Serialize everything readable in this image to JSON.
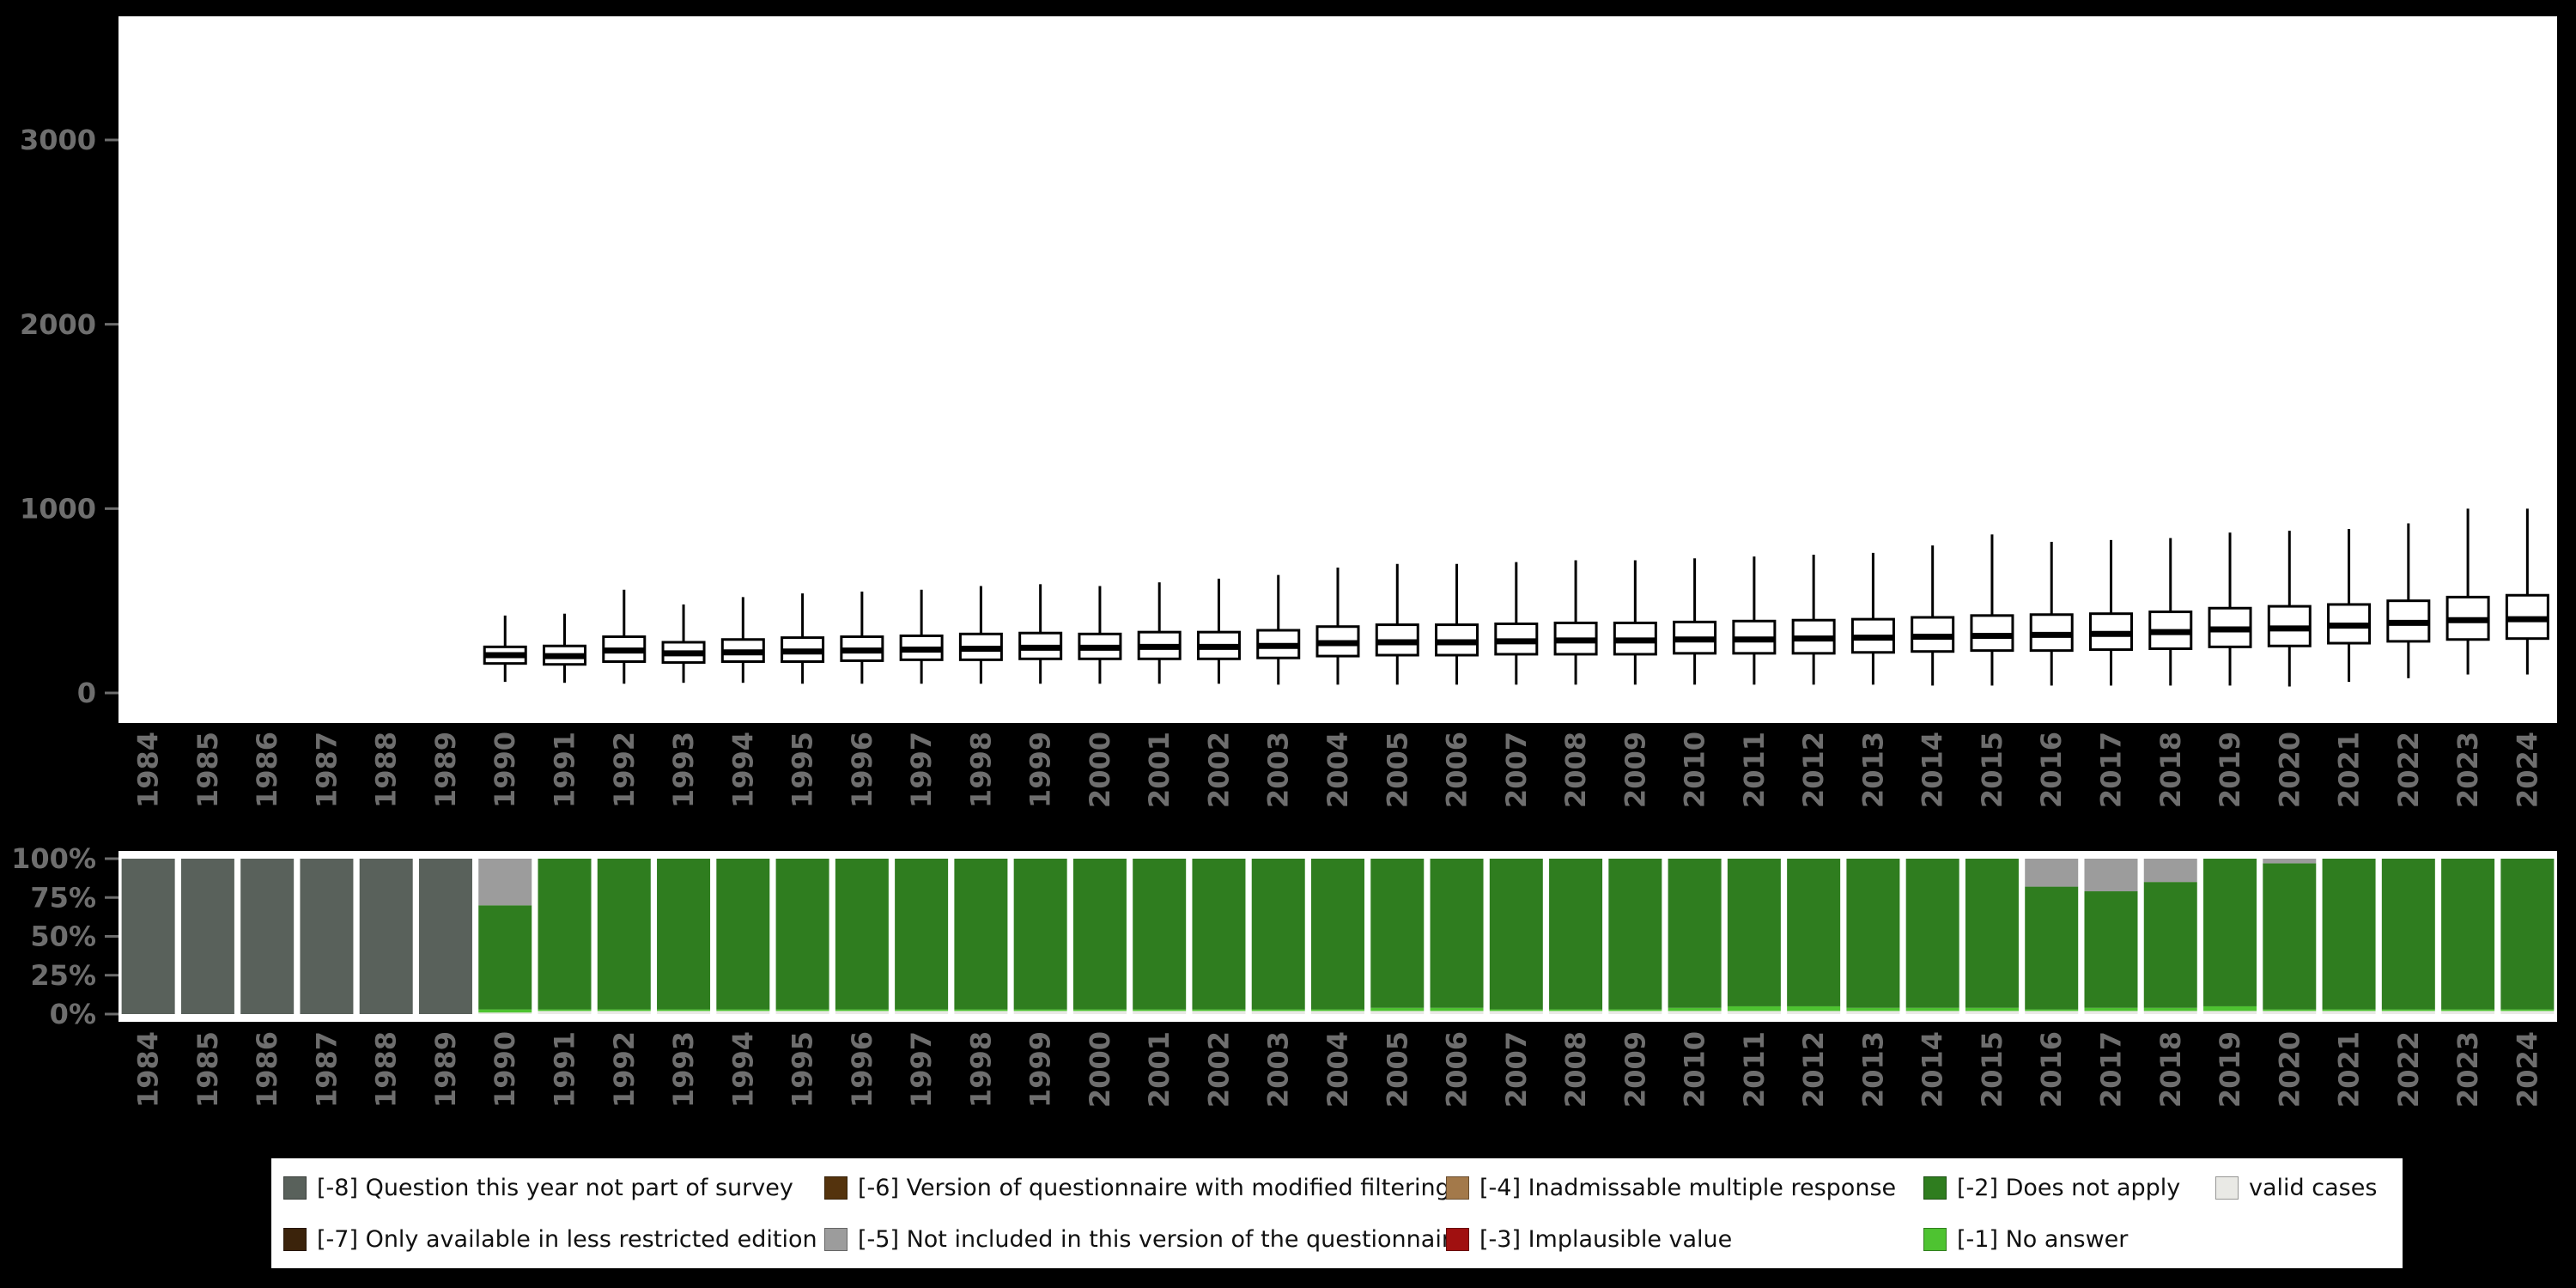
{
  "figure": {
    "background": "#000000",
    "panel_background": "#ffffff",
    "axis_text_color": "#6e6e6e",
    "box_stroke_color": "#000000"
  },
  "chart_data": [
    {
      "type": "boxplot",
      "title": "",
      "xlabel": "",
      "ylabel": "",
      "ylim": [
        0,
        3600
      ],
      "yticks": [
        0,
        1000,
        2000,
        3000
      ],
      "years": [
        1984,
        1985,
        1986,
        1987,
        1988,
        1989,
        1990,
        1991,
        1992,
        1993,
        1994,
        1995,
        1996,
        1997,
        1998,
        1999,
        2000,
        2001,
        2002,
        2003,
        2004,
        2005,
        2006,
        2007,
        2008,
        2009,
        2010,
        2011,
        2012,
        2013,
        2014,
        2015,
        2016,
        2017,
        2018,
        2019,
        2020,
        2021,
        2022,
        2023,
        2024
      ],
      "columns": [
        "year",
        "whisker_low",
        "q1",
        "median",
        "q3",
        "whisker_high"
      ],
      "boxes": [
        [
          1990,
          60,
          160,
          205,
          250,
          420
        ],
        [
          1991,
          55,
          155,
          200,
          255,
          430
        ],
        [
          1992,
          50,
          170,
          230,
          305,
          560
        ],
        [
          1993,
          55,
          165,
          215,
          275,
          480
        ],
        [
          1994,
          55,
          170,
          220,
          290,
          520
        ],
        [
          1995,
          50,
          170,
          225,
          300,
          540
        ],
        [
          1996,
          50,
          175,
          230,
          305,
          550
        ],
        [
          1997,
          50,
          180,
          235,
          310,
          560
        ],
        [
          1998,
          50,
          180,
          240,
          320,
          580
        ],
        [
          1999,
          50,
          185,
          245,
          325,
          590
        ],
        [
          2000,
          50,
          185,
          245,
          320,
          580
        ],
        [
          2001,
          50,
          185,
          250,
          330,
          600
        ],
        [
          2002,
          50,
          185,
          250,
          330,
          620
        ],
        [
          2003,
          45,
          190,
          255,
          340,
          640
        ],
        [
          2004,
          45,
          200,
          270,
          360,
          680
        ],
        [
          2005,
          45,
          205,
          275,
          370,
          700
        ],
        [
          2006,
          45,
          205,
          275,
          370,
          700
        ],
        [
          2007,
          45,
          210,
          280,
          375,
          710
        ],
        [
          2008,
          45,
          210,
          285,
          380,
          720
        ],
        [
          2009,
          45,
          210,
          285,
          380,
          720
        ],
        [
          2010,
          45,
          215,
          290,
          385,
          730
        ],
        [
          2011,
          45,
          215,
          290,
          390,
          740
        ],
        [
          2012,
          45,
          215,
          295,
          395,
          750
        ],
        [
          2013,
          45,
          220,
          300,
          400,
          760
        ],
        [
          2014,
          40,
          225,
          305,
          410,
          800
        ],
        [
          2015,
          40,
          230,
          310,
          420,
          860
        ],
        [
          2016,
          40,
          230,
          315,
          425,
          820
        ],
        [
          2017,
          40,
          235,
          320,
          430,
          830
        ],
        [
          2018,
          40,
          240,
          330,
          440,
          840
        ],
        [
          2019,
          40,
          250,
          345,
          460,
          870
        ],
        [
          2020,
          35,
          255,
          350,
          470,
          880
        ],
        [
          2021,
          60,
          270,
          365,
          480,
          890
        ],
        [
          2022,
          80,
          280,
          380,
          500,
          920
        ],
        [
          2023,
          100,
          290,
          395,
          520,
          1000
        ],
        [
          2024,
          100,
          295,
          400,
          530,
          1000
        ]
      ]
    },
    {
      "type": "bar",
      "stacked": true,
      "unit": "percent",
      "title": "",
      "xlabel": "",
      "ylabel": "",
      "yticks": [
        {
          "value": 100,
          "label": "100%"
        },
        {
          "value": 75,
          "label": "75%"
        },
        {
          "value": 50,
          "label": "50%"
        },
        {
          "value": 25,
          "label": "25%"
        },
        {
          "value": 0,
          "label": "0%"
        }
      ],
      "stack_order_bottom_to_top": [
        "valid",
        "m1",
        "m2",
        "m5",
        "m8"
      ],
      "colors": {
        "valid": "#e9e9e5",
        "m1": "#4ec331",
        "m2": "#2f7d1f",
        "m3": "#a01010",
        "m4": "#a3794a",
        "m5": "#9c9c9c",
        "m6": "#54330d",
        "m7": "#3b230b",
        "m8": "#59615b"
      },
      "columns": [
        "year",
        "valid",
        "m1",
        "m2",
        "m5",
        "m8"
      ],
      "rows": [
        [
          1984,
          0,
          0,
          0,
          0,
          100
        ],
        [
          1985,
          0,
          0,
          0,
          0,
          100
        ],
        [
          1986,
          0,
          0,
          0,
          0,
          100
        ],
        [
          1987,
          0,
          0,
          0,
          0,
          100
        ],
        [
          1988,
          0,
          0,
          0,
          0,
          100
        ],
        [
          1989,
          0,
          0,
          0,
          0,
          100
        ],
        [
          1990,
          1,
          2,
          67,
          30,
          0
        ],
        [
          1991,
          2,
          1,
          97,
          0,
          0
        ],
        [
          1992,
          2,
          1,
          97,
          0,
          0
        ],
        [
          1993,
          2,
          1,
          97,
          0,
          0
        ],
        [
          1994,
          2,
          1,
          97,
          0,
          0
        ],
        [
          1995,
          2,
          1,
          97,
          0,
          0
        ],
        [
          1996,
          2,
          1,
          97,
          0,
          0
        ],
        [
          1997,
          2,
          1,
          97,
          0,
          0
        ],
        [
          1998,
          2,
          1,
          97,
          0,
          0
        ],
        [
          1999,
          2,
          1,
          97,
          0,
          0
        ],
        [
          2000,
          2,
          1,
          97,
          0,
          0
        ],
        [
          2001,
          2,
          1,
          97,
          0,
          0
        ],
        [
          2002,
          2,
          1,
          97,
          0,
          0
        ],
        [
          2003,
          2,
          1,
          97,
          0,
          0
        ],
        [
          2004,
          2,
          1,
          97,
          0,
          0
        ],
        [
          2005,
          2,
          2,
          96,
          0,
          0
        ],
        [
          2006,
          2,
          2,
          96,
          0,
          0
        ],
        [
          2007,
          2,
          1,
          97,
          0,
          0
        ],
        [
          2008,
          2,
          1,
          97,
          0,
          0
        ],
        [
          2009,
          2,
          1,
          97,
          0,
          0
        ],
        [
          2010,
          2,
          2,
          96,
          0,
          0
        ],
        [
          2011,
          2,
          3,
          95,
          0,
          0
        ],
        [
          2012,
          2,
          3,
          95,
          0,
          0
        ],
        [
          2013,
          2,
          2,
          96,
          0,
          0
        ],
        [
          2014,
          2,
          2,
          96,
          0,
          0
        ],
        [
          2015,
          2,
          2,
          96,
          0,
          0
        ],
        [
          2016,
          2,
          1,
          79,
          18,
          0
        ],
        [
          2017,
          2,
          2,
          75,
          21,
          0
        ],
        [
          2018,
          2,
          2,
          81,
          15,
          0
        ],
        [
          2019,
          2,
          3,
          95,
          0,
          0
        ],
        [
          2020,
          2,
          1,
          94,
          3,
          0
        ],
        [
          2021,
          2,
          1,
          97,
          0,
          0
        ],
        [
          2022,
          2,
          1,
          97,
          0,
          0
        ],
        [
          2023,
          2,
          1,
          97,
          0,
          0
        ],
        [
          2024,
          2,
          1,
          97,
          0,
          0
        ]
      ]
    }
  ],
  "legend": {
    "items": [
      {
        "key": "m8",
        "label": "[-8] Question this year not part of survey",
        "color": "#59615b"
      },
      {
        "key": "m7",
        "label": "[-7] Only available in less restricted edition",
        "color": "#3b230b"
      },
      {
        "key": "m6",
        "label": "[-6] Version of questionnaire with modified filtering",
        "color": "#54330d"
      },
      {
        "key": "m5",
        "label": "[-5] Not included in this version of the questionnaire",
        "color": "#9c9c9c"
      },
      {
        "key": "m4",
        "label": "[-4] Inadmissable multiple response",
        "color": "#a3794a"
      },
      {
        "key": "m3",
        "label": "[-3] Implausible value",
        "color": "#a01010"
      },
      {
        "key": "m2",
        "label": "[-2] Does not apply",
        "color": "#2f7d1f"
      },
      {
        "key": "m1",
        "label": "[-1] No answer",
        "color": "#4ec331"
      },
      {
        "key": "valid",
        "label": "valid cases",
        "color": "#e9e9e5"
      }
    ]
  }
}
